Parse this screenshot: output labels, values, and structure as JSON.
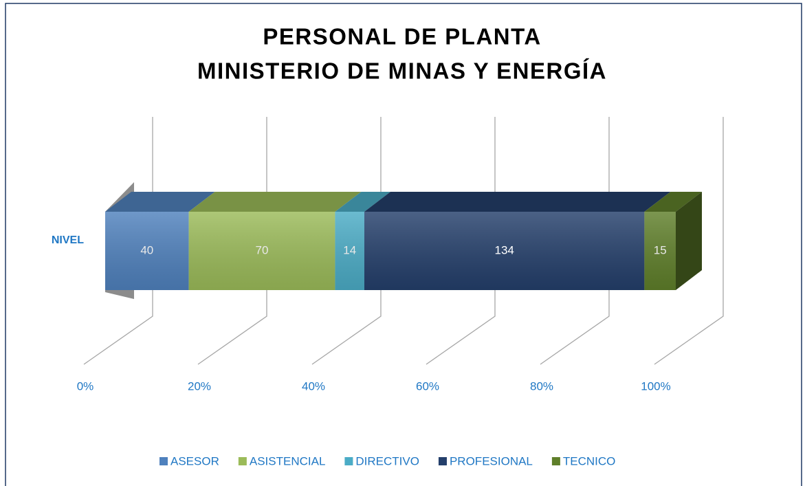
{
  "chart_data": {
    "type": "bar",
    "orientation": "horizontal",
    "stacked": "percent",
    "title": [
      "PERSONAL DE PLANTA",
      "MINISTERIO DE MINAS Y ENERGÍA"
    ],
    "categories": [
      "NIVEL"
    ],
    "series": [
      {
        "name": "ASESOR",
        "color": "#4f81bd",
        "values": [
          40
        ]
      },
      {
        "name": "ASISTENCIAL",
        "color": "#9bbb59",
        "values": [
          70
        ]
      },
      {
        "name": "DIRECTIVO",
        "color": "#4bacc6",
        "values": [
          14
        ]
      },
      {
        "name": "PROFESIONAL",
        "color": "#243f6b",
        "values": [
          134
        ]
      },
      {
        "name": "TECNICO",
        "color": "#5f7f2a",
        "values": [
          15
        ]
      }
    ],
    "xlim": [
      0,
      100
    ],
    "xticks": [
      {
        "value": 0,
        "label": "0%"
      },
      {
        "value": 20,
        "label": "20%"
      },
      {
        "value": 40,
        "label": "40%"
      },
      {
        "value": 60,
        "label": "60%"
      },
      {
        "value": 80,
        "label": "80%"
      },
      {
        "value": 100,
        "label": "100%"
      }
    ],
    "grid": true,
    "legend": "bottom"
  }
}
